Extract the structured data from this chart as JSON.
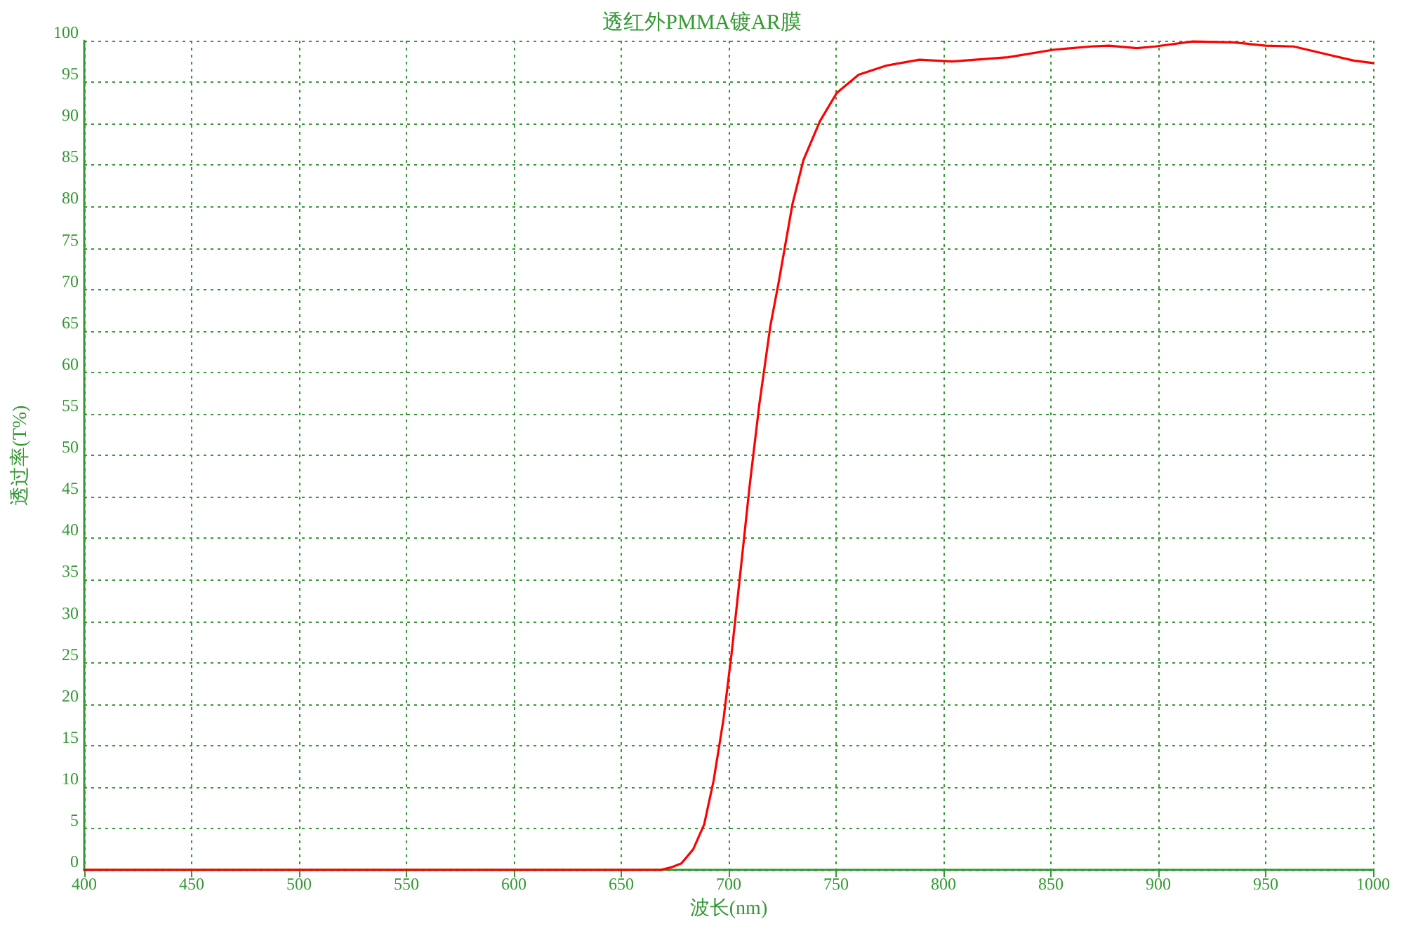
{
  "chart_data": {
    "type": "line",
    "title": "透红外PMMA镀AR膜",
    "xlabel": "波长(nm)",
    "ylabel": "透过率(T%)",
    "x": [
      400,
      450,
      500,
      550,
      600,
      650,
      668,
      673,
      678,
      683.5,
      688.6,
      693,
      697.6,
      701.4,
      705.3,
      709.7,
      714.3,
      719.4,
      723.3,
      729.7,
      734.8,
      742.5,
      750.3,
      760.5,
      773.4,
      788.8,
      804,
      830,
      851,
      868.5,
      877,
      890,
      898.5,
      916,
      935,
      950,
      963,
      981,
      991,
      1000
    ],
    "series": [
      {
        "color": "#ff0000",
        "values": [
          0,
          0,
          0,
          0,
          0,
          0,
          0,
          0.3,
          0.8,
          2.5,
          5.5,
          10.8,
          18.2,
          26.2,
          35.5,
          46.2,
          56.2,
          65.6,
          70.9,
          80.3,
          85.6,
          90.3,
          93.7,
          95.9,
          97,
          97.7,
          97.5,
          98,
          98.9,
          99.3,
          99.4,
          99.1,
          99.3,
          99.9,
          99.8,
          99.4,
          99.3,
          98.2,
          97.6,
          97.3
        ]
      }
    ],
    "xlim": [
      400,
      1000
    ],
    "xticks": [
      400,
      450,
      500,
      550,
      600,
      650,
      700,
      750,
      800,
      850,
      900,
      950,
      1000
    ],
    "ylim": [
      0,
      100
    ],
    "yticks": [
      0,
      5,
      10,
      15,
      20,
      25,
      30,
      35,
      40,
      45,
      50,
      55,
      60,
      65,
      70,
      75,
      80,
      85,
      90,
      95,
      100
    ],
    "grid": true,
    "marker": "none",
    "line_style": "solid"
  }
}
